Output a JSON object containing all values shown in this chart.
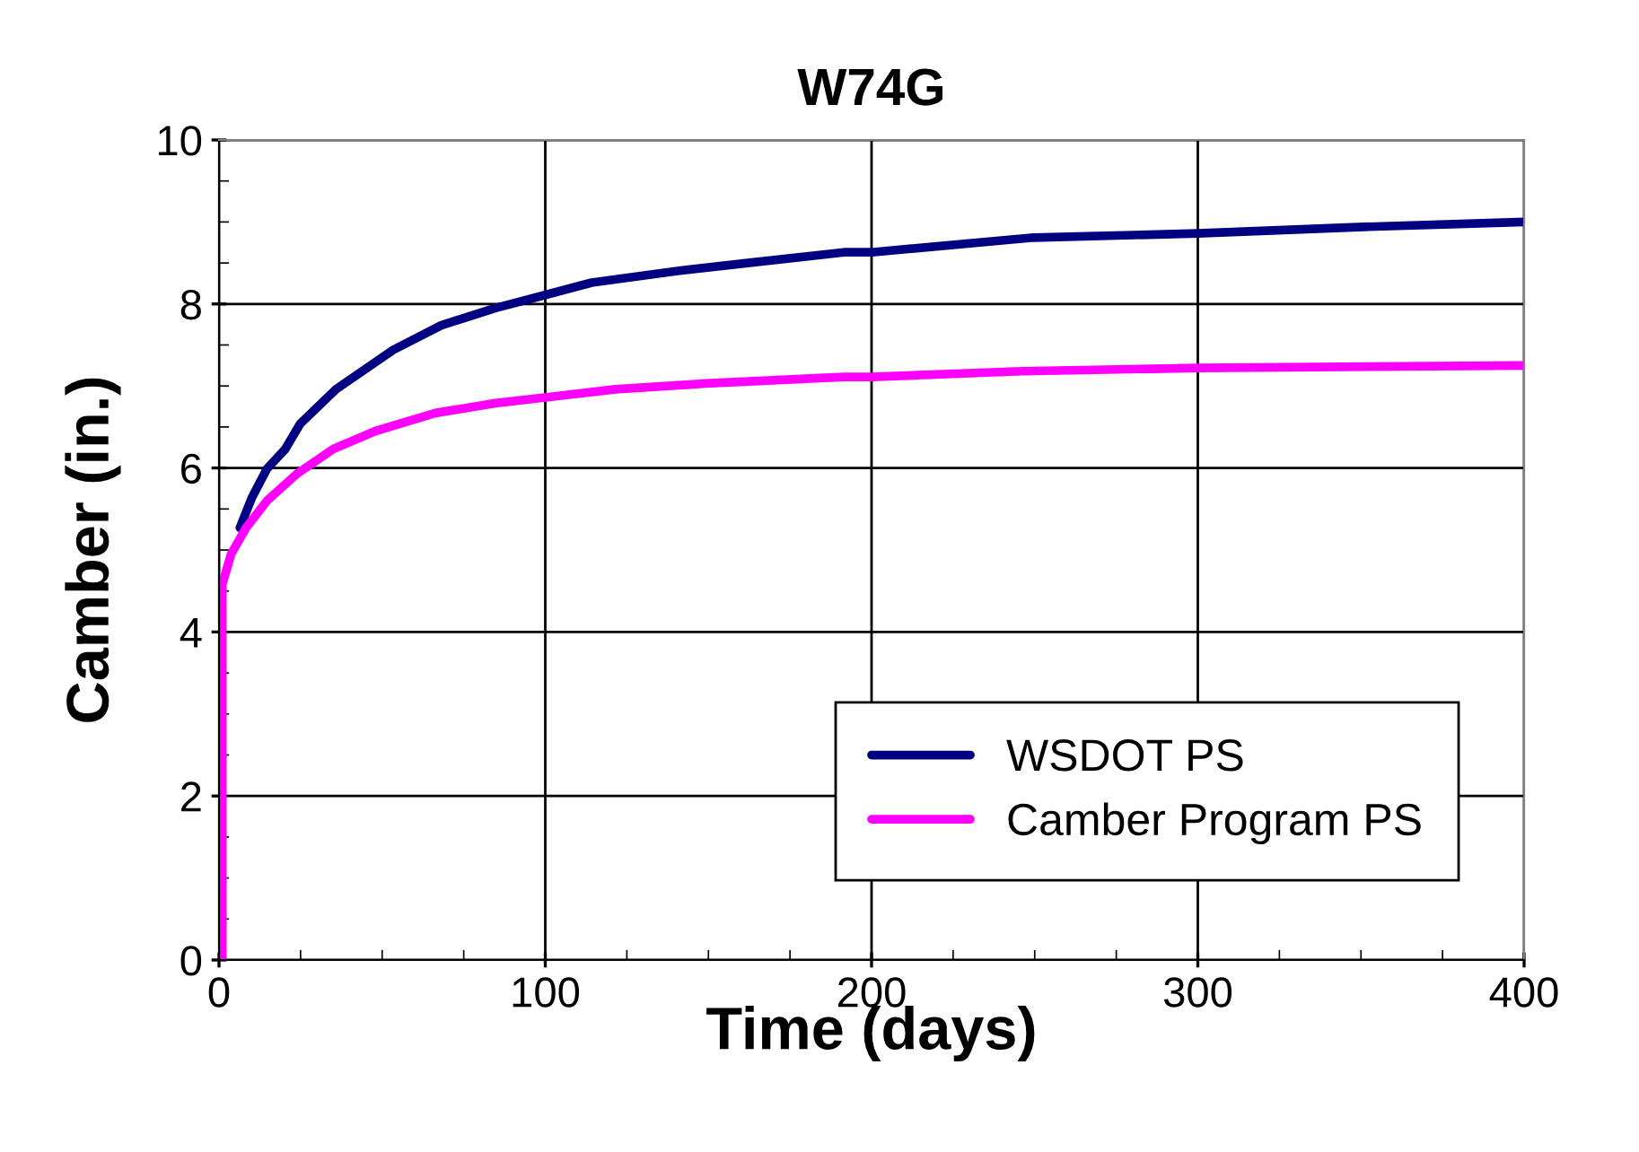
{
  "chart_data": {
    "type": "line",
    "title": "W74G",
    "xlabel": "Time (days)",
    "ylabel": "Camber (in.)",
    "xlim": [
      0,
      400
    ],
    "xticks": [
      0,
      100,
      200,
      300,
      400
    ],
    "ylim": [
      0,
      10
    ],
    "yticks": [
      0,
      2,
      4,
      6,
      8,
      10
    ],
    "grid": true,
    "legend": "bottom right",
    "marker": "none",
    "line_style": "solid",
    "series": [
      {
        "name": "WSDOT PS",
        "color": "#000080",
        "x": [
          6.4,
          10.1,
          14.7,
          20.3,
          24.9,
          35.9,
          53.4,
          68.1,
          84.7,
          100,
          114.2,
          140,
          162,
          191.5,
          200,
          249.7,
          300,
          350.9,
          400
        ],
        "values": [
          5.27,
          5.64,
          5.99,
          6.23,
          6.54,
          6.96,
          7.44,
          7.74,
          7.95,
          8.11,
          8.26,
          8.4,
          8.5,
          8.63,
          8.63,
          8.81,
          8.86,
          8.94,
          9.0
        ]
      },
      {
        "name": "Camber Program PS",
        "color": "#ff00ff",
        "x": [
          1,
          1,
          3.7,
          8.3,
          14.7,
          23.9,
          35,
          47.9,
          66.3,
          84.7,
          100,
          121.5,
          149.2,
          191.5,
          200,
          246,
          300,
          400
        ],
        "values": [
          0,
          4.58,
          4.95,
          5.27,
          5.6,
          5.93,
          6.23,
          6.45,
          6.67,
          6.79,
          6.86,
          6.96,
          7.03,
          7.11,
          7.11,
          7.18,
          7.22,
          7.25
        ]
      }
    ]
  }
}
